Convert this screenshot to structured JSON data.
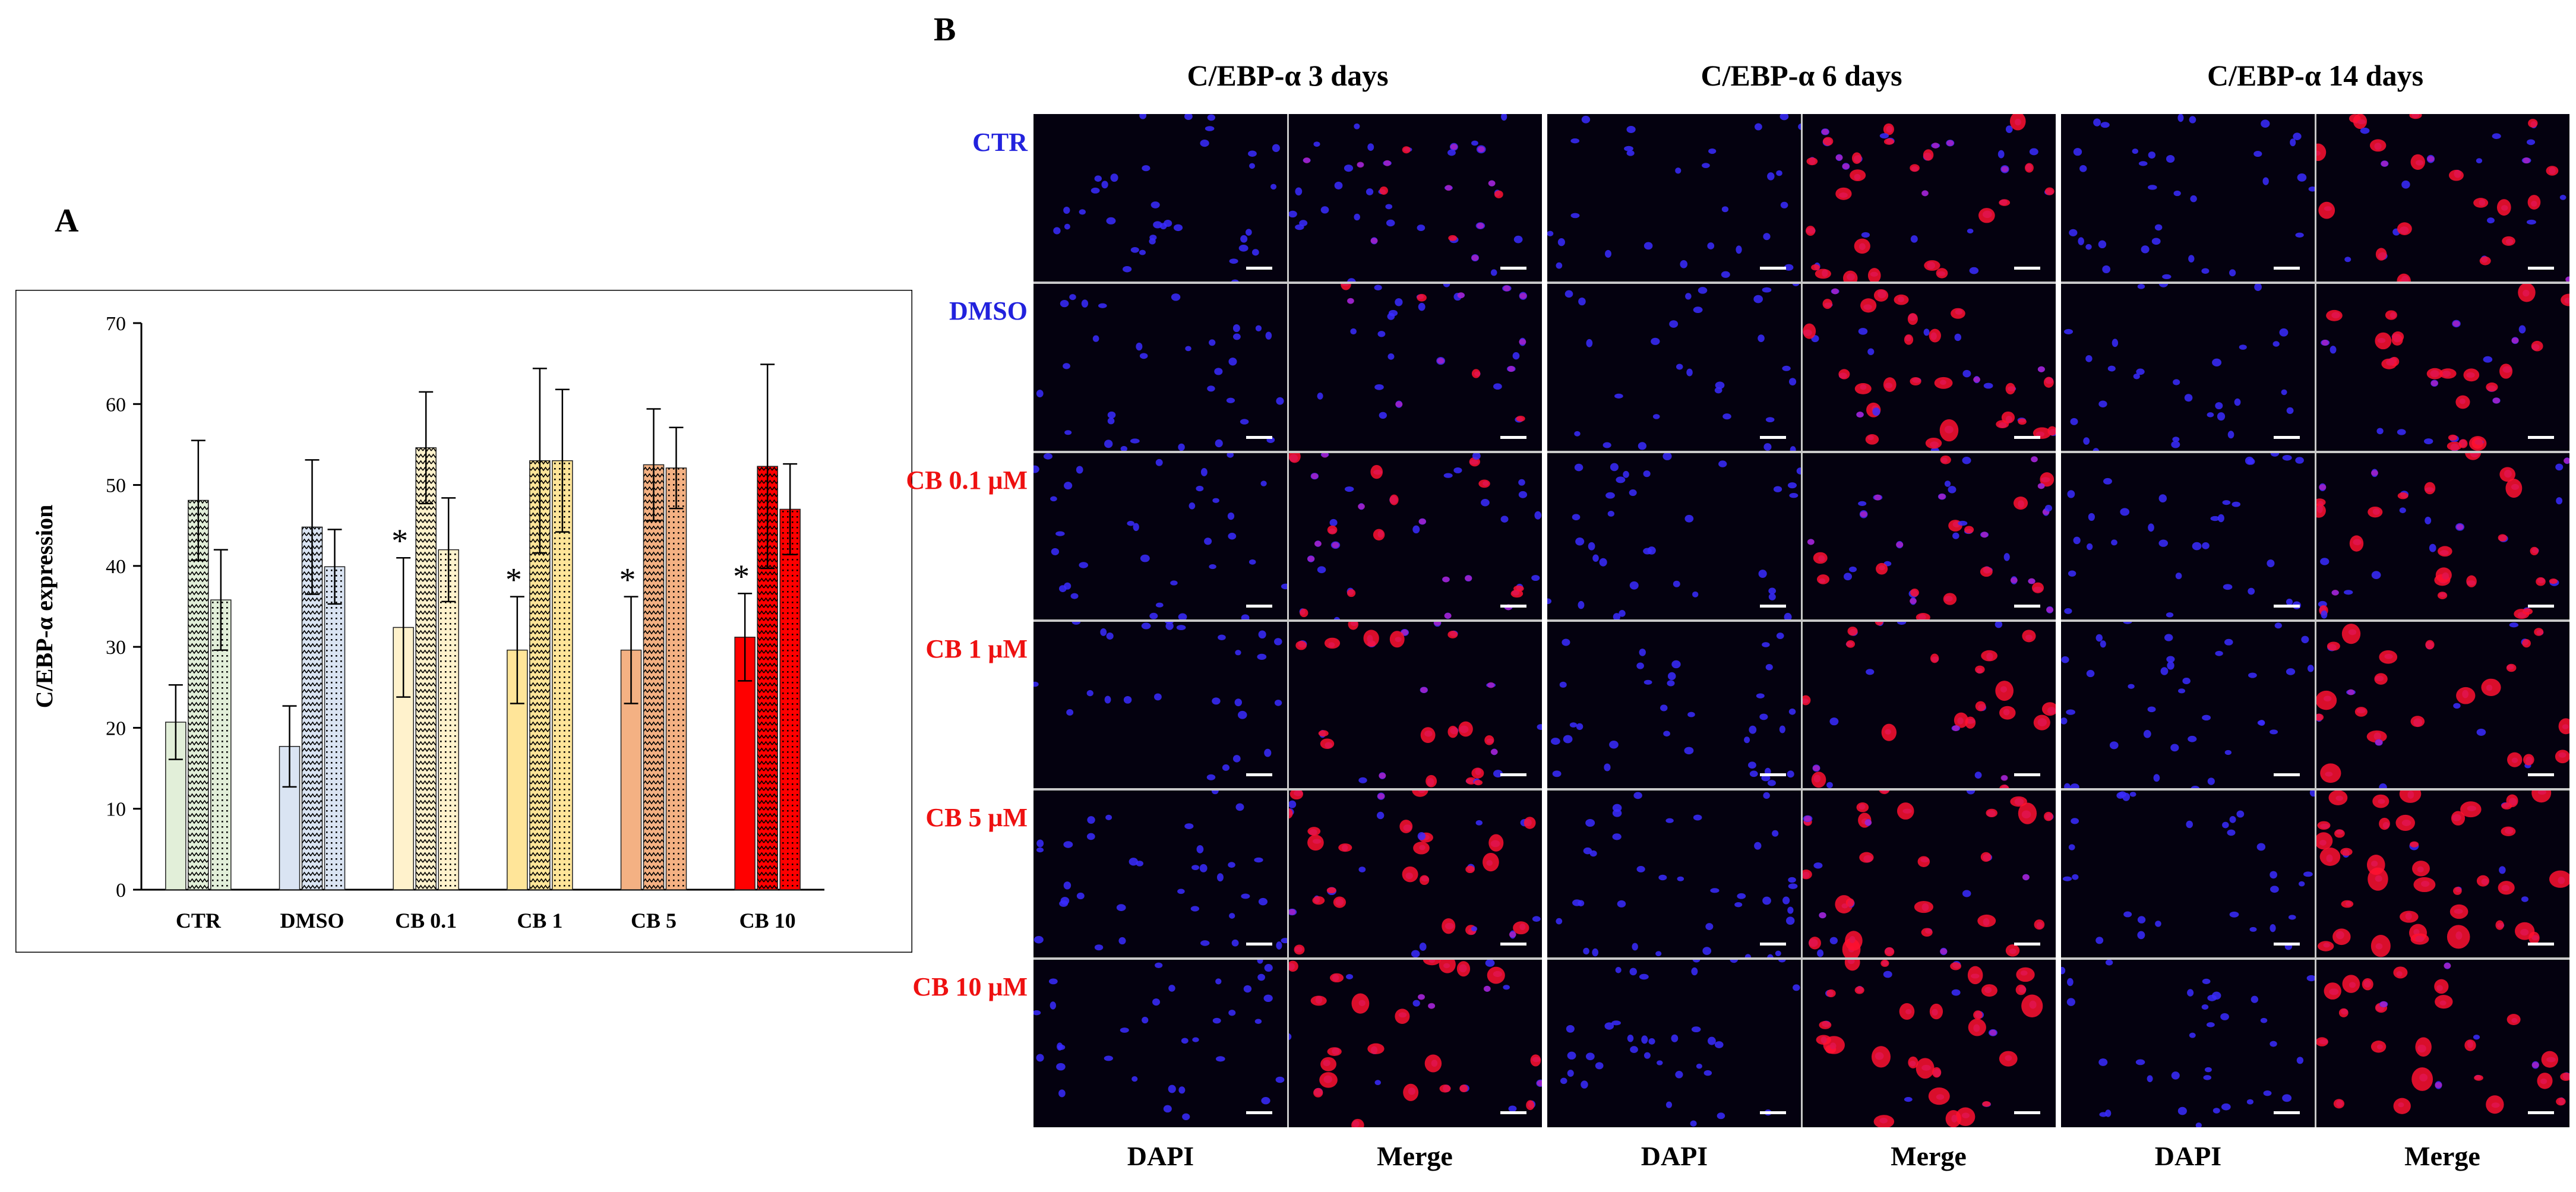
{
  "panels": {
    "a": "A",
    "b": "B"
  },
  "chart_data": {
    "type": "bar",
    "ylabel": "C/EBP-α expression",
    "xlabel": "",
    "ylim": [
      0,
      70
    ],
    "yticks": [
      0,
      10,
      20,
      30,
      40,
      50,
      60,
      70
    ],
    "categories": [
      "CTR",
      "DMSO",
      "CB 0.1",
      "CB 1",
      "CB 5",
      "CB 10"
    ],
    "colors": [
      "#e2efd9",
      "#dae4f3",
      "#fff2cc",
      "#ffe599",
      "#f4b183",
      "#ff0000"
    ],
    "series": [
      {
        "name": "3 days",
        "pattern": "plain",
        "values": [
          20.7,
          17.7,
          32.4,
          29.6,
          29.6,
          31.2
        ],
        "errors": [
          4.6,
          5.0,
          8.6,
          6.6,
          6.6,
          5.4
        ]
      },
      {
        "name": "6 days",
        "pattern": "zigzag",
        "values": [
          48.1,
          44.8,
          54.6,
          53.0,
          52.5,
          52.3
        ],
        "errors": [
          7.4,
          8.3,
          6.9,
          11.4,
          6.9,
          12.6
        ]
      },
      {
        "name": "14 days",
        "pattern": "dots",
        "values": [
          35.8,
          39.9,
          42.0,
          53.0,
          52.1,
          47.0
        ],
        "errors": [
          6.2,
          4.6,
          6.4,
          8.8,
          5.0,
          5.6
        ]
      }
    ],
    "significance": [
      "",
      "",
      "*",
      "*",
      "*",
      "*"
    ]
  },
  "micrographs": {
    "columns": [
      "C/EBP-α 3 days",
      "C/EBP-α 6 days",
      "C/EBP-α 14 days"
    ],
    "rows": [
      {
        "label": "CTR",
        "color": "#2222dd"
      },
      {
        "label": "DMSO",
        "color": "#2222dd"
      },
      {
        "label": "CB 0.1 μM",
        "color": "#ee1111"
      },
      {
        "label": "CB 1 μM",
        "color": "#ee1111"
      },
      {
        "label": "CB 5 μM",
        "color": "#ee1111"
      },
      {
        "label": "CB 10 μM",
        "color": "#ee1111"
      }
    ],
    "channels": [
      "DAPI",
      "Merge"
    ],
    "nuclear_stain_color": "#3a2cff",
    "target_stain_color": "#ff1030"
  }
}
